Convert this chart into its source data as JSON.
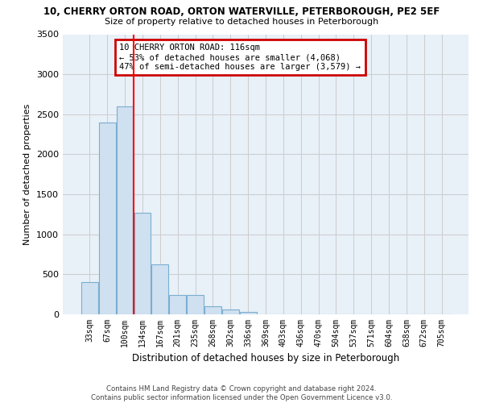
{
  "title_line1": "10, CHERRY ORTON ROAD, ORTON WATERVILLE, PETERBOROUGH, PE2 5EF",
  "title_line2": "Size of property relative to detached houses in Peterborough",
  "xlabel": "Distribution of detached houses by size in Peterborough",
  "ylabel": "Number of detached properties",
  "footer": "Contains HM Land Registry data © Crown copyright and database right 2024.\nContains public sector information licensed under the Open Government Licence v3.0.",
  "categories": [
    "33sqm",
    "67sqm",
    "100sqm",
    "134sqm",
    "167sqm",
    "201sqm",
    "235sqm",
    "268sqm",
    "302sqm",
    "336sqm",
    "369sqm",
    "403sqm",
    "436sqm",
    "470sqm",
    "504sqm",
    "537sqm",
    "571sqm",
    "604sqm",
    "638sqm",
    "672sqm",
    "705sqm"
  ],
  "values": [
    400,
    2400,
    2600,
    1270,
    620,
    240,
    240,
    100,
    60,
    30,
    0,
    0,
    0,
    0,
    0,
    0,
    0,
    0,
    0,
    0,
    0
  ],
  "bar_color": "#cfe0f0",
  "bar_edge_color": "#7aaed0",
  "red_line_x": 2.5,
  "annotation_text": "10 CHERRY ORTON ROAD: 116sqm\n← 53% of detached houses are smaller (4,068)\n47% of semi-detached houses are larger (3,579) →",
  "annotation_box_color": "#ffffff",
  "annotation_box_edge": "#cc0000",
  "ylim": [
    0,
    3500
  ],
  "yticks": [
    0,
    500,
    1000,
    1500,
    2000,
    2500,
    3000,
    3500
  ],
  "background_color": "#ffffff",
  "grid_color": "#cccccc",
  "plot_bg_color": "#e8f0f8"
}
